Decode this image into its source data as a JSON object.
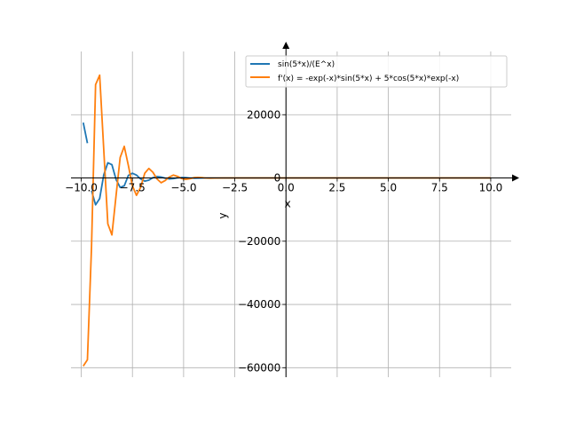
{
  "chart_data": {
    "type": "line",
    "xlabel": "x",
    "ylabel": "y",
    "xlim": [
      -10.5,
      11.0
    ],
    "ylim": [
      -63000,
      40000
    ],
    "x_ticks": [
      -10.0,
      -7.5,
      -5.0,
      -2.5,
      0.0,
      2.5,
      5.0,
      7.5,
      10.0
    ],
    "x_tick_labels": [
      "−10.0",
      "−7.5",
      "−5.0",
      "−2.5",
      "0.0",
      "2.5",
      "5.0",
      "7.5",
      "10.0"
    ],
    "y_ticks": [
      -60000,
      -40000,
      -20000,
      0,
      20000
    ],
    "y_tick_labels": [
      "−60000",
      "−40000",
      "−20000",
      "0",
      "20000"
    ],
    "grid": true,
    "legend_position": "upper-right",
    "series": [
      {
        "name": "sin(5*x)/(E^x)",
        "color": "#1f77b4",
        "segments": [
          {
            "x": [
              -9.9,
              -9.7
            ],
            "y": [
              17500,
              11000
            ]
          },
          {
            "x": [
              -9.5,
              -9.3,
              -9.1,
              -8.9,
              -8.7,
              -8.5,
              -8.3,
              -8.1,
              -7.9,
              -7.7,
              -7.5,
              -7.3,
              -7.1,
              -6.9,
              -6.7,
              -6.5,
              -6.3,
              -6.1,
              -5.9,
              -5.7,
              -5.5,
              -5.3,
              -5.1,
              -4.9,
              -4.7,
              -4.5,
              -4.3,
              -4.1,
              -3.9,
              -3.5,
              -3.0,
              -2.0,
              0.0,
              5.0,
              10.0
            ],
            "y": [
              -4000,
              -8500,
              -6500,
              1000,
              4800,
              4200,
              -500,
              -3000,
              -2500,
              800,
              1500,
              900,
              -300,
              -1000,
              -700,
              100,
              450,
              280,
              -80,
              -300,
              -180,
              40,
              140,
              90,
              -20,
              -50,
              -30,
              10,
              20,
              5,
              0,
              0,
              0,
              0,
              0
            ]
          }
        ]
      },
      {
        "name": "f'(x) = -exp(-x)*sin(5*x) + 5*cos(5*x)*exp(-x)",
        "color": "#ff7f0e",
        "segments": [
          {
            "x": [
              -9.9,
              -9.7,
              -9.5,
              -9.3,
              -9.1,
              -8.9,
              -8.7,
              -8.5,
              -8.3,
              -8.1,
              -7.9,
              -7.7,
              -7.5,
              -7.3,
              -7.1,
              -6.9,
              -6.7,
              -6.5,
              -6.3,
              -6.1,
              -5.9,
              -5.7,
              -5.5,
              -5.3,
              -5.1,
              -4.9,
              -4.7,
              -4.5,
              -4.3,
              -4.1,
              -3.9,
              -3.7,
              -3.5,
              -3.0,
              -2.0,
              0.0,
              5.0,
              10.0
            ],
            "y": [
              -59500,
              -57500,
              -22000,
              29500,
              32500,
              9000,
              -14500,
              -18000,
              -5500,
              6500,
              10000,
              4000,
              -2500,
              -5500,
              -3000,
              1500,
              3000,
              1800,
              -300,
              -1500,
              -800,
              300,
              900,
              500,
              -150,
              -450,
              -250,
              80,
              180,
              110,
              -20,
              -50,
              -20,
              0,
              0,
              0,
              0,
              0
            ]
          }
        ]
      }
    ]
  }
}
